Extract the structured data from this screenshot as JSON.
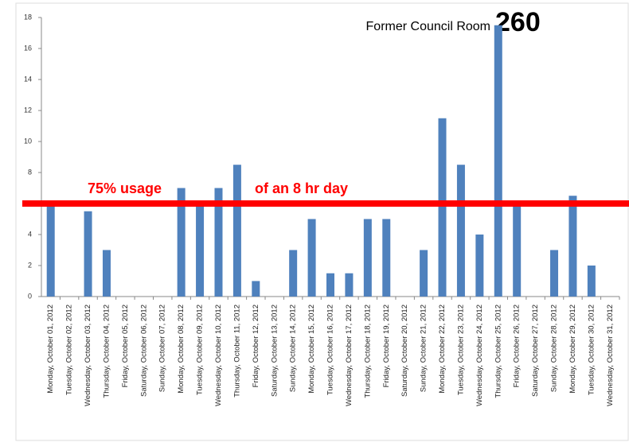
{
  "chart_data": {
    "type": "bar",
    "title": "Former Council Room",
    "subtitle": "260",
    "categories": [
      "Monday, October 01, 2012",
      "Tuesday, October 02, 2012",
      "Wednesday, October 03, 2012",
      "Thursday, October 04, 2012",
      "Friday, October 05, 2012",
      "Saturday, October 06, 2012",
      "Sunday, October 07, 2012",
      "Monday, October 08, 2012",
      "Tuesday, October 09, 2012",
      "Wednesday, October 10, 2012",
      "Thursday, October 11, 2012",
      "Friday, October 12, 2012",
      "Saturday, October 13, 2012",
      "Sunday, October 14, 2012",
      "Monday, October 15, 2012",
      "Tuesday, October 16, 2012",
      "Wednesday, October 17, 2012",
      "Thursday, October 18, 2012",
      "Friday, October 19, 2012",
      "Saturday, October 20, 2012",
      "Sunday, October 21, 2012",
      "Monday, October 22, 2012",
      "Tuesday, October 23, 2012",
      "Wednesday, October 24, 2012",
      "Thursday, October 25, 2012",
      "Friday, October 26, 2012",
      "Saturday, October 27, 2012",
      "Sunday, October 28, 2012",
      "Monday, October 29, 2012",
      "Tuesday, October 30, 2012",
      "Wednesday, October 31, 2012"
    ],
    "values": [
      6,
      0,
      5.5,
      3,
      0,
      0,
      0,
      7,
      6,
      7,
      8.5,
      1,
      0,
      3,
      5,
      1.5,
      1.5,
      5,
      5,
      0,
      3,
      11.5,
      8.5,
      4,
      17.5,
      6,
      0,
      3,
      6.5,
      2,
      0
    ],
    "color": "#4f81bd",
    "ylim": [
      0,
      18
    ],
    "yticks": [
      0,
      2,
      4,
      6,
      8,
      10,
      12,
      14,
      16,
      18
    ],
    "grid": false,
    "threshold": {
      "value": 6,
      "color": "#ff0000",
      "labels": [
        "75% usage",
        "of an 8 hr day"
      ]
    }
  }
}
